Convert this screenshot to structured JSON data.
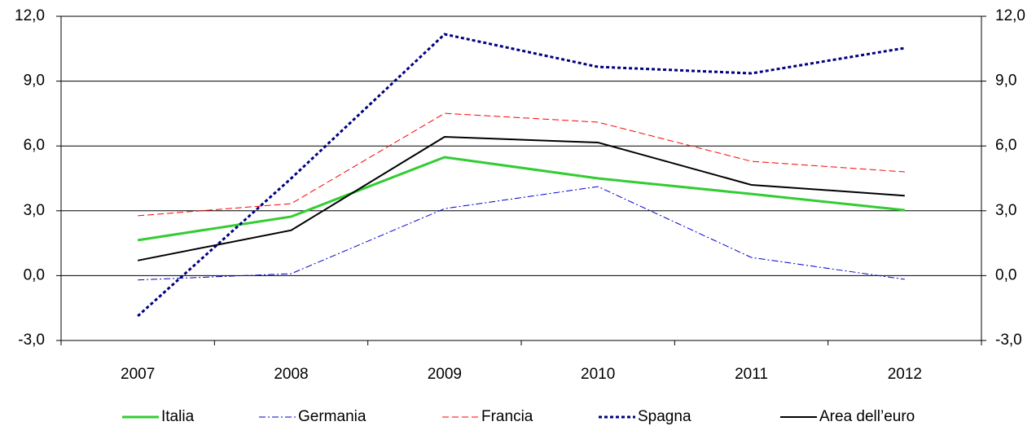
{
  "chart_data": {
    "type": "line",
    "categories": [
      "2007",
      "2008",
      "2009",
      "2010",
      "2011",
      "2012"
    ],
    "series": [
      {
        "name": "Italia",
        "color": "#33cc33",
        "style": "solid",
        "width": 3,
        "values": [
          1.64,
          2.73,
          5.48,
          4.5,
          3.78,
          3.03
        ]
      },
      {
        "name": "Germania",
        "color": "#0000cc",
        "style": "dashdot",
        "width": 1,
        "values": [
          -0.2,
          0.09,
          3.1,
          4.12,
          0.84,
          -0.17
        ]
      },
      {
        "name": "Francia",
        "color": "#ff0000",
        "style": "dashed",
        "width": 1,
        "values": [
          2.77,
          3.33,
          7.51,
          7.1,
          5.29,
          4.8
        ]
      },
      {
        "name": "Spagna",
        "color": "#000080",
        "style": "dotted",
        "width": 3,
        "values": [
          -1.87,
          4.5,
          11.17,
          9.66,
          9.36,
          10.53
        ]
      },
      {
        "name": "Area dell’euro",
        "color": "#000000",
        "style": "solid",
        "width": 2,
        "values": [
          0.7,
          2.1,
          6.42,
          6.16,
          4.2,
          3.7
        ]
      }
    ],
    "ylim": [
      -3,
      12
    ],
    "yticks": [
      {
        "value": -3,
        "label": "-3,0"
      },
      {
        "value": 0,
        "label": "0,0"
      },
      {
        "value": 3,
        "label": "3,0"
      },
      {
        "value": 6,
        "label": "6,0"
      },
      {
        "value": 9,
        "label": "9,0"
      },
      {
        "value": 12,
        "label": "12,0"
      }
    ],
    "y2lim": [
      -3,
      12
    ],
    "y2ticks": [
      {
        "value": -3,
        "label": "-3,0"
      },
      {
        "value": 0,
        "label": "0,0"
      },
      {
        "value": 3,
        "label": "3,0"
      },
      {
        "value": 6,
        "label": "6,0"
      },
      {
        "value": 9,
        "label": "9,0"
      },
      {
        "value": 12,
        "label": "12,0"
      }
    ],
    "grid": true,
    "legend": "bottom"
  }
}
